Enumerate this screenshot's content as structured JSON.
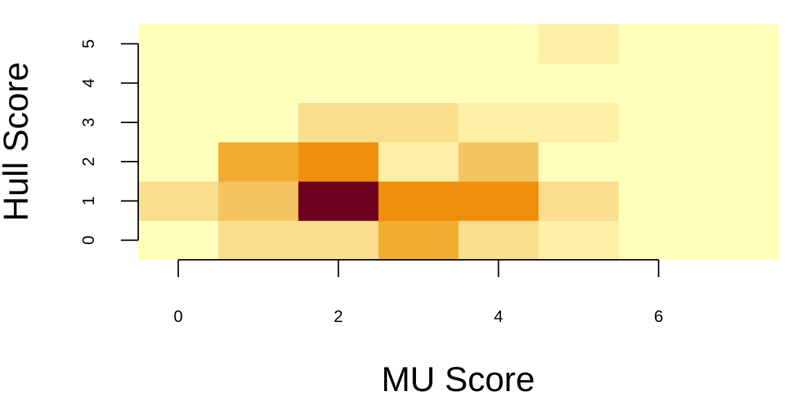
{
  "chart_data": {
    "type": "heatmap",
    "xlabel": "MU Score",
    "ylabel": "Hull Score",
    "x": [
      0,
      1,
      2,
      3,
      4,
      5,
      6,
      7
    ],
    "y": [
      0,
      1,
      2,
      3,
      4,
      5
    ],
    "x_ticks": [
      "0",
      "2",
      "4",
      "6"
    ],
    "y_ticks": [
      "0",
      "1",
      "2",
      "3",
      "4",
      "5"
    ],
    "xlim": [
      -0.5,
      7.5
    ],
    "ylim": [
      -0.5,
      5.5
    ],
    "grid": false,
    "legend": false,
    "levels": [
      0,
      1,
      2,
      3,
      5,
      7,
      8,
      15
    ],
    "palette": [
      "#FFFFBB",
      "#FFF0A6",
      "#F8DE8D",
      "#F5C462",
      "#F2AC30",
      "#EF8E0B",
      "#EF8E0B",
      "#6C001E"
    ],
    "matrix": [
      [
        0,
        2,
        2,
        5,
        2,
        1,
        0,
        0
      ],
      [
        2,
        3,
        15,
        7,
        8,
        2,
        0,
        0
      ],
      [
        0,
        5,
        8,
        1,
        3,
        0,
        0,
        0
      ],
      [
        0,
        0,
        2,
        2,
        1,
        1,
        0,
        0
      ],
      [
        0,
        0,
        0,
        0,
        0,
        0,
        0,
        0
      ],
      [
        0,
        0,
        0,
        0,
        0,
        1,
        0,
        0
      ]
    ]
  }
}
